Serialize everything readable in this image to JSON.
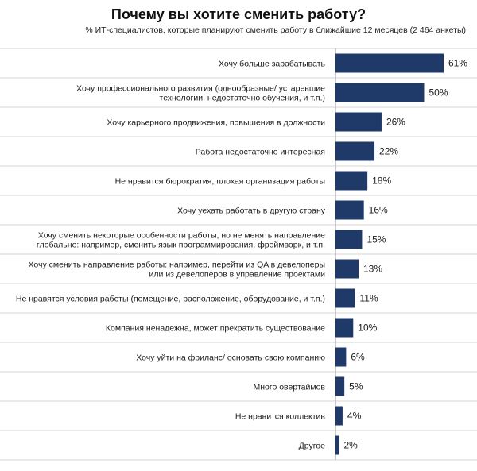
{
  "chart_data": {
    "type": "bar",
    "orientation": "horizontal",
    "title": "Почему вы хотите сменить работу?",
    "subtitle": "% ИТ-специалистов,  которые планируют сменить работу в ближайшие  12 месяцев (2 464 анкеты)",
    "categories": [
      [
        "Хочу больше зарабатывать"
      ],
      [
        "Хочу профессионального развития  (однообразные/ устаревшие",
        "технологии, недостаточно обучения, и т.п.)"
      ],
      [
        "Хочу карьерного продвижения, повышения в должности"
      ],
      [
        "Работа недостаточно  интересная"
      ],
      [
        "Не нравится бюрократия, плохая организация работы"
      ],
      [
        "Хочу уехать работать  в другую страну"
      ],
      [
        "Хочу сменить некоторые особенности работы, но не менять направление",
        "глобально: например, сменить язык программирования, фреймворк, и т.п."
      ],
      [
        "Хочу сменить направление работы: например, перейти из QA в девелоперы",
        "или из девелоперов в управление проектами"
      ],
      [
        "Не нравятся условия работы (помещение, расположение, оборудование, и т.п.)"
      ],
      [
        "Компания ненадежна, может прекратить существование"
      ],
      [
        "Хочу уйти на фриланс/ основать  свою компанию"
      ],
      [
        "Много овертаймов"
      ],
      [
        "Не нравится коллектив"
      ],
      [
        "Другое"
      ]
    ],
    "values": [
      61,
      50,
      26,
      22,
      18,
      16,
      15,
      13,
      11,
      10,
      6,
      5,
      4,
      2
    ],
    "value_labels": [
      "61%",
      "50%",
      "26%",
      "22%",
      "18%",
      "16%",
      "15%",
      "13%",
      "11%",
      "10%",
      "6%",
      "5%",
      "4%",
      "2%"
    ],
    "xlim": [
      0,
      70
    ],
    "grid": "horizontal separators",
    "legend": "none"
  },
  "colors": {
    "bar": "#1f3a68",
    "separator": "#d4d4d4",
    "axis": "#9a9a9a"
  }
}
